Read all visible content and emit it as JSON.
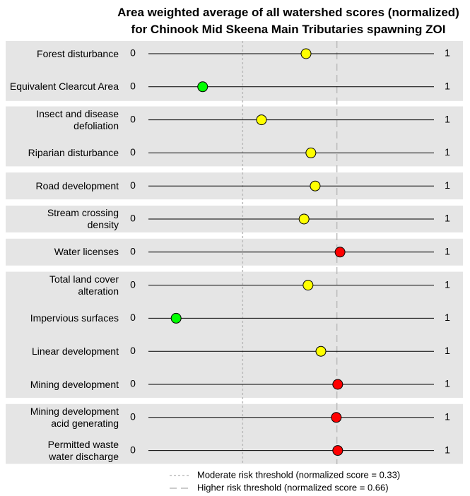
{
  "chart_data": {
    "type": "dot",
    "title": "Area weighted average of all watershed scores (normalized)\nfor Chinook Mid Skeena Main Tributaries spawning ZOI",
    "categories": [
      "Forest disturbance",
      "Equivalent Clearcut Area",
      "Insect and disease\ndefoliation",
      "Riparian disturbance",
      "Road development",
      "Stream crossing\ndensity",
      "Water licenses",
      "Total land cover\nalteration",
      "Impervious surfaces",
      "Linear development",
      "Mining development",
      "Mining development\nacid generating",
      "Permitted waste\nwater discharge"
    ],
    "values": [
      0.552,
      0.19,
      0.396,
      0.569,
      0.584,
      0.545,
      0.671,
      0.559,
      0.097,
      0.604,
      0.663,
      0.658,
      0.663
    ],
    "colors": [
      "#ffff00",
      "#00ff00",
      "#ffff00",
      "#ffff00",
      "#ffff00",
      "#ffff00",
      "#ff0000",
      "#ffff00",
      "#00ff00",
      "#ffff00",
      "#ff0000",
      "#ff0000",
      "#ff0000"
    ],
    "groups": [
      2,
      2,
      1,
      1,
      1,
      4,
      2
    ],
    "xlim": [
      0,
      1
    ],
    "thresholds": [
      {
        "value": 0.33,
        "label": "Moderate risk threshold (normalized score = 0.33)",
        "style": "dotted"
      },
      {
        "value": 0.66,
        "label": "Higher risk threshold (normalized score = 0.66)",
        "style": "dashed"
      }
    ]
  }
}
